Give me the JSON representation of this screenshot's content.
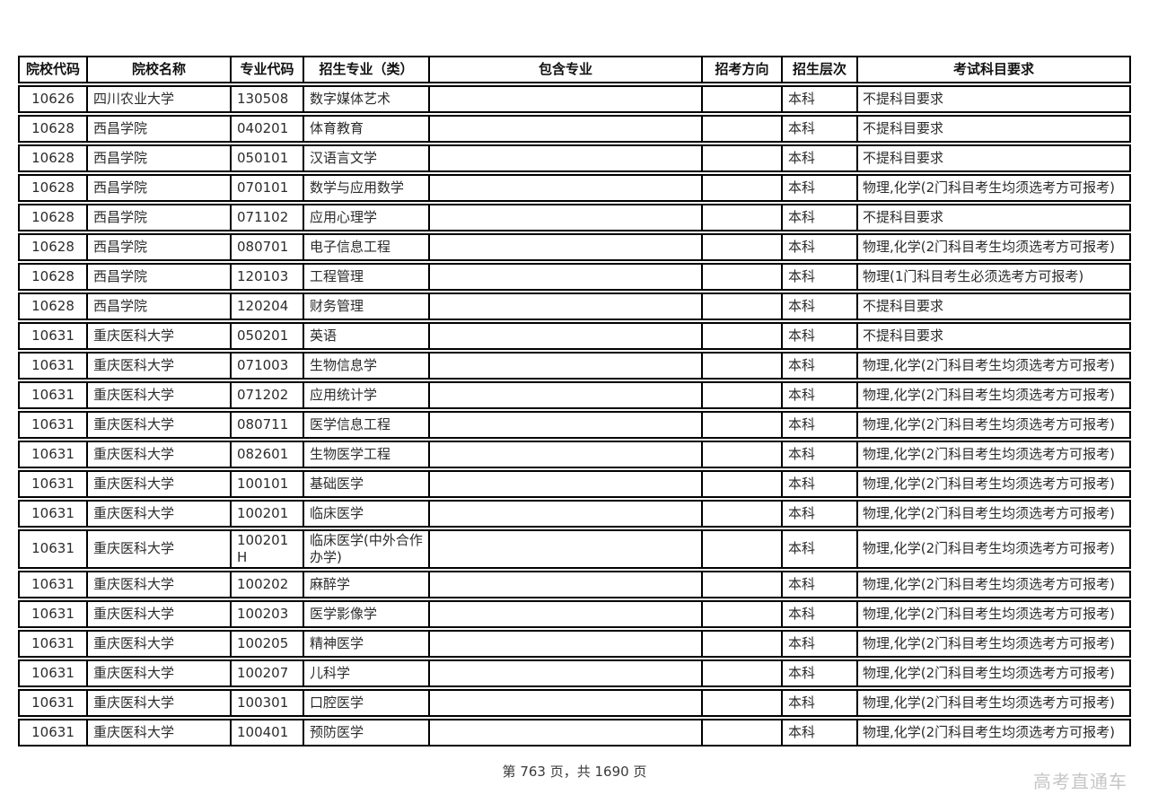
{
  "table": {
    "columns": [
      {
        "id": "college_code",
        "label": "院校代码"
      },
      {
        "id": "college_name",
        "label": "院校名称"
      },
      {
        "id": "major_code",
        "label": "专业代码"
      },
      {
        "id": "major_name",
        "label": "招生专业（类）"
      },
      {
        "id": "included_majors",
        "label": "包含专业"
      },
      {
        "id": "direction",
        "label": "招考方向"
      },
      {
        "id": "level",
        "label": "招生层次"
      },
      {
        "id": "subject_requirements",
        "label": "考试科目要求"
      }
    ],
    "rows": [
      {
        "college_code": "10626",
        "college_name": "四川农业大学",
        "major_code": "130508",
        "major_name": "数字媒体艺术",
        "included_majors": "",
        "direction": "",
        "level": "本科",
        "subject_requirements": "不提科目要求"
      },
      {
        "college_code": "10628",
        "college_name": "西昌学院",
        "major_code": "040201",
        "major_name": "体育教育",
        "included_majors": "",
        "direction": "",
        "level": "本科",
        "subject_requirements": "不提科目要求"
      },
      {
        "college_code": "10628",
        "college_name": "西昌学院",
        "major_code": "050101",
        "major_name": "汉语言文学",
        "included_majors": "",
        "direction": "",
        "level": "本科",
        "subject_requirements": "不提科目要求"
      },
      {
        "college_code": "10628",
        "college_name": "西昌学院",
        "major_code": "070101",
        "major_name": "数学与应用数学",
        "included_majors": "",
        "direction": "",
        "level": "本科",
        "subject_requirements": "物理,化学(2门科目考生均须选考方可报考)"
      },
      {
        "college_code": "10628",
        "college_name": "西昌学院",
        "major_code": "071102",
        "major_name": "应用心理学",
        "included_majors": "",
        "direction": "",
        "level": "本科",
        "subject_requirements": "不提科目要求"
      },
      {
        "college_code": "10628",
        "college_name": "西昌学院",
        "major_code": "080701",
        "major_name": "电子信息工程",
        "included_majors": "",
        "direction": "",
        "level": "本科",
        "subject_requirements": "物理,化学(2门科目考生均须选考方可报考)"
      },
      {
        "college_code": "10628",
        "college_name": "西昌学院",
        "major_code": "120103",
        "major_name": "工程管理",
        "included_majors": "",
        "direction": "",
        "level": "本科",
        "subject_requirements": "物理(1门科目考生必须选考方可报考)"
      },
      {
        "college_code": "10628",
        "college_name": "西昌学院",
        "major_code": "120204",
        "major_name": "财务管理",
        "included_majors": "",
        "direction": "",
        "level": "本科",
        "subject_requirements": "不提科目要求"
      },
      {
        "college_code": "10631",
        "college_name": "重庆医科大学",
        "major_code": "050201",
        "major_name": "英语",
        "included_majors": "",
        "direction": "",
        "level": "本科",
        "subject_requirements": "不提科目要求"
      },
      {
        "college_code": "10631",
        "college_name": "重庆医科大学",
        "major_code": "071003",
        "major_name": "生物信息学",
        "included_majors": "",
        "direction": "",
        "level": "本科",
        "subject_requirements": "物理,化学(2门科目考生均须选考方可报考)"
      },
      {
        "college_code": "10631",
        "college_name": "重庆医科大学",
        "major_code": "071202",
        "major_name": "应用统计学",
        "included_majors": "",
        "direction": "",
        "level": "本科",
        "subject_requirements": "物理,化学(2门科目考生均须选考方可报考)"
      },
      {
        "college_code": "10631",
        "college_name": "重庆医科大学",
        "major_code": "080711",
        "major_name": "医学信息工程",
        "included_majors": "",
        "direction": "",
        "level": "本科",
        "subject_requirements": "物理,化学(2门科目考生均须选考方可报考)"
      },
      {
        "college_code": "10631",
        "college_name": "重庆医科大学",
        "major_code": "082601",
        "major_name": "生物医学工程",
        "included_majors": "",
        "direction": "",
        "level": "本科",
        "subject_requirements": "物理,化学(2门科目考生均须选考方可报考)"
      },
      {
        "college_code": "10631",
        "college_name": "重庆医科大学",
        "major_code": "100101",
        "major_name": "基础医学",
        "included_majors": "",
        "direction": "",
        "level": "本科",
        "subject_requirements": "物理,化学(2门科目考生均须选考方可报考)"
      },
      {
        "college_code": "10631",
        "college_name": "重庆医科大学",
        "major_code": "100201",
        "major_name": "临床医学",
        "included_majors": "",
        "direction": "",
        "level": "本科",
        "subject_requirements": "物理,化学(2门科目考生均须选考方可报考)"
      },
      {
        "college_code": "10631",
        "college_name": "重庆医科大学",
        "major_code": "100201H",
        "major_name": "临床医学(中外合作办学)",
        "included_majors": "",
        "direction": "",
        "level": "本科",
        "subject_requirements": "物理,化学(2门科目考生均须选考方可报考)"
      },
      {
        "college_code": "10631",
        "college_name": "重庆医科大学",
        "major_code": "100202",
        "major_name": "麻醉学",
        "included_majors": "",
        "direction": "",
        "level": "本科",
        "subject_requirements": "物理,化学(2门科目考生均须选考方可报考)"
      },
      {
        "college_code": "10631",
        "college_name": "重庆医科大学",
        "major_code": "100203",
        "major_name": "医学影像学",
        "included_majors": "",
        "direction": "",
        "level": "本科",
        "subject_requirements": "物理,化学(2门科目考生均须选考方可报考)"
      },
      {
        "college_code": "10631",
        "college_name": "重庆医科大学",
        "major_code": "100205",
        "major_name": "精神医学",
        "included_majors": "",
        "direction": "",
        "level": "本科",
        "subject_requirements": "物理,化学(2门科目考生均须选考方可报考)"
      },
      {
        "college_code": "10631",
        "college_name": "重庆医科大学",
        "major_code": "100207",
        "major_name": "儿科学",
        "included_majors": "",
        "direction": "",
        "level": "本科",
        "subject_requirements": "物理,化学(2门科目考生均须选考方可报考)"
      },
      {
        "college_code": "10631",
        "college_name": "重庆医科大学",
        "major_code": "100301",
        "major_name": "口腔医学",
        "included_majors": "",
        "direction": "",
        "level": "本科",
        "subject_requirements": "物理,化学(2门科目考生均须选考方可报考)"
      },
      {
        "college_code": "10631",
        "college_name": "重庆医科大学",
        "major_code": "100401",
        "major_name": "预防医学",
        "included_majors": "",
        "direction": "",
        "level": "本科",
        "subject_requirements": "物理,化学(2门科目考生均须选考方可报考)"
      }
    ]
  },
  "footer": {
    "page_info": "第 763 页，共 1690 页"
  },
  "watermark": "高考直通车",
  "colors": {
    "border": "#000000",
    "body_text": "#2b2b2b",
    "watermark_text": "#c6c6c6",
    "background": "#ffffff"
  }
}
